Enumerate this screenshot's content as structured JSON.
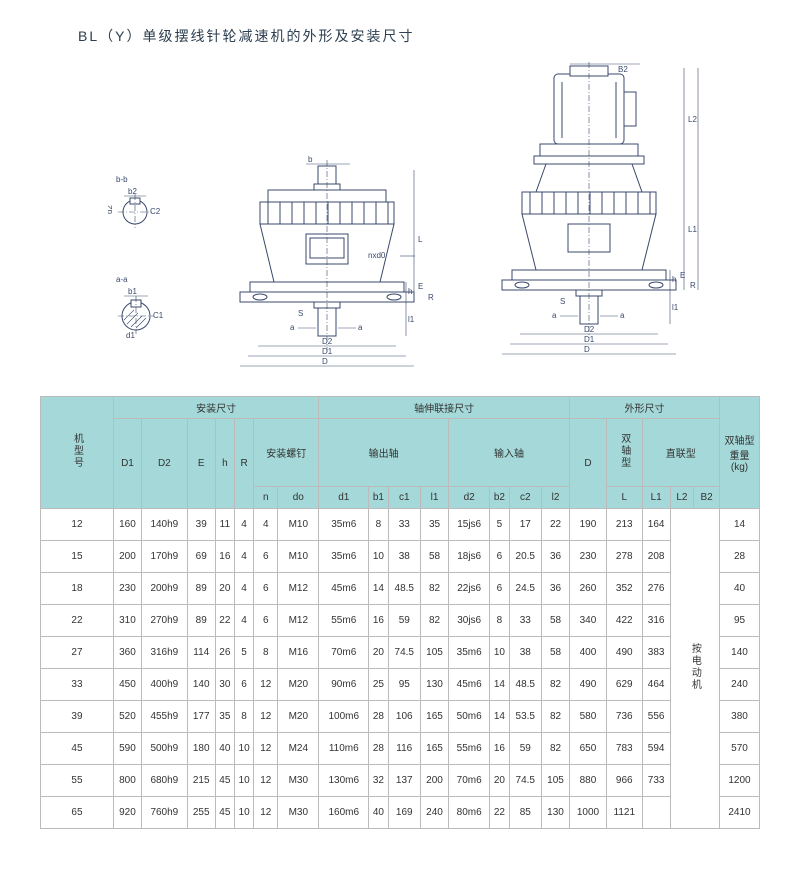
{
  "title": "BL（Y）单级摆线针轮减速机的外形及安装尺寸",
  "diagram_labels": {
    "bb": "b-b",
    "b2": "b2",
    "c2": "C2",
    "d2s": "d2",
    "b": "b",
    "aa": "a-a",
    "b1": "b1",
    "c1": "C1",
    "d1s": "d1",
    "a": "a",
    "nxd0": "nxd0",
    "L": "L",
    "h": "h",
    "E": "E",
    "R": "R",
    "l1": "l1",
    "S": "S",
    "D2": "D2",
    "D1": "D1",
    "D": "D",
    "B2": "B2",
    "L2": "L2",
    "L1": "L1"
  },
  "table": {
    "group_headers": [
      "安装尺寸",
      "轴伸联接尺寸",
      "外形尺寸"
    ],
    "mid_headers": {
      "model": "机型号",
      "D1": "D1",
      "D2": "D2",
      "E": "E",
      "h": "h",
      "R": "R",
      "screw": "安装螺钉",
      "out_shaft": "输出轴",
      "in_shaft": "输入轴",
      "D": "D",
      "dual": "双轴型",
      "direct": "直联型",
      "weight": "双轴型重量 (kg)"
    },
    "sub_headers": [
      "n",
      "do",
      "d1",
      "b1",
      "c1",
      "l1",
      "d2",
      "b2",
      "c2",
      "l2",
      "L",
      "L1",
      "L2",
      "B2"
    ],
    "motor_note": "按电动机",
    "rows": [
      [
        "12",
        "160",
        "140h9",
        "39",
        "11",
        "4",
        "4",
        "M10",
        "35m6",
        "8",
        "33",
        "35",
        "15js6",
        "5",
        "17",
        "22",
        "190",
        "213",
        "164",
        "14"
      ],
      [
        "15",
        "200",
        "170h9",
        "69",
        "16",
        "4",
        "6",
        "M10",
        "35m6",
        "10",
        "38",
        "58",
        "18js6",
        "6",
        "20.5",
        "36",
        "230",
        "278",
        "208",
        "28"
      ],
      [
        "18",
        "230",
        "200h9",
        "89",
        "20",
        "4",
        "6",
        "M12",
        "45m6",
        "14",
        "48.5",
        "82",
        "22js6",
        "6",
        "24.5",
        "36",
        "260",
        "352",
        "276",
        "40"
      ],
      [
        "22",
        "310",
        "270h9",
        "89",
        "22",
        "4",
        "6",
        "M12",
        "55m6",
        "16",
        "59",
        "82",
        "30js6",
        "8",
        "33",
        "58",
        "340",
        "422",
        "316",
        "95"
      ],
      [
        "27",
        "360",
        "316h9",
        "114",
        "26",
        "5",
        "8",
        "M16",
        "70m6",
        "20",
        "74.5",
        "105",
        "35m6",
        "10",
        "38",
        "58",
        "400",
        "490",
        "383",
        "140"
      ],
      [
        "33",
        "450",
        "400h9",
        "140",
        "30",
        "6",
        "12",
        "M20",
        "90m6",
        "25",
        "95",
        "130",
        "45m6",
        "14",
        "48.5",
        "82",
        "490",
        "629",
        "464",
        "240"
      ],
      [
        "39",
        "520",
        "455h9",
        "177",
        "35",
        "8",
        "12",
        "M20",
        "100m6",
        "28",
        "106",
        "165",
        "50m6",
        "14",
        "53.5",
        "82",
        "580",
        "736",
        "556",
        "380"
      ],
      [
        "45",
        "590",
        "500h9",
        "180",
        "40",
        "10",
        "12",
        "M24",
        "110m6",
        "28",
        "116",
        "165",
        "55m6",
        "16",
        "59",
        "82",
        "650",
        "783",
        "594",
        "570"
      ],
      [
        "55",
        "800",
        "680h9",
        "215",
        "45",
        "10",
        "12",
        "M30",
        "130m6",
        "32",
        "137",
        "200",
        "70m6",
        "20",
        "74.5",
        "105",
        "880",
        "966",
        "733",
        "1200"
      ],
      [
        "65",
        "920",
        "760h9",
        "255",
        "45",
        "10",
        "12",
        "M30",
        "160m6",
        "40",
        "169",
        "240",
        "80m6",
        "22",
        "85",
        "130",
        "1000",
        "1121",
        "",
        "2410"
      ]
    ]
  },
  "colors": {
    "header_bg": "#a5d8d8",
    "border": "#bbbbbb",
    "line": "#3a4a6b",
    "text": "#333333"
  }
}
